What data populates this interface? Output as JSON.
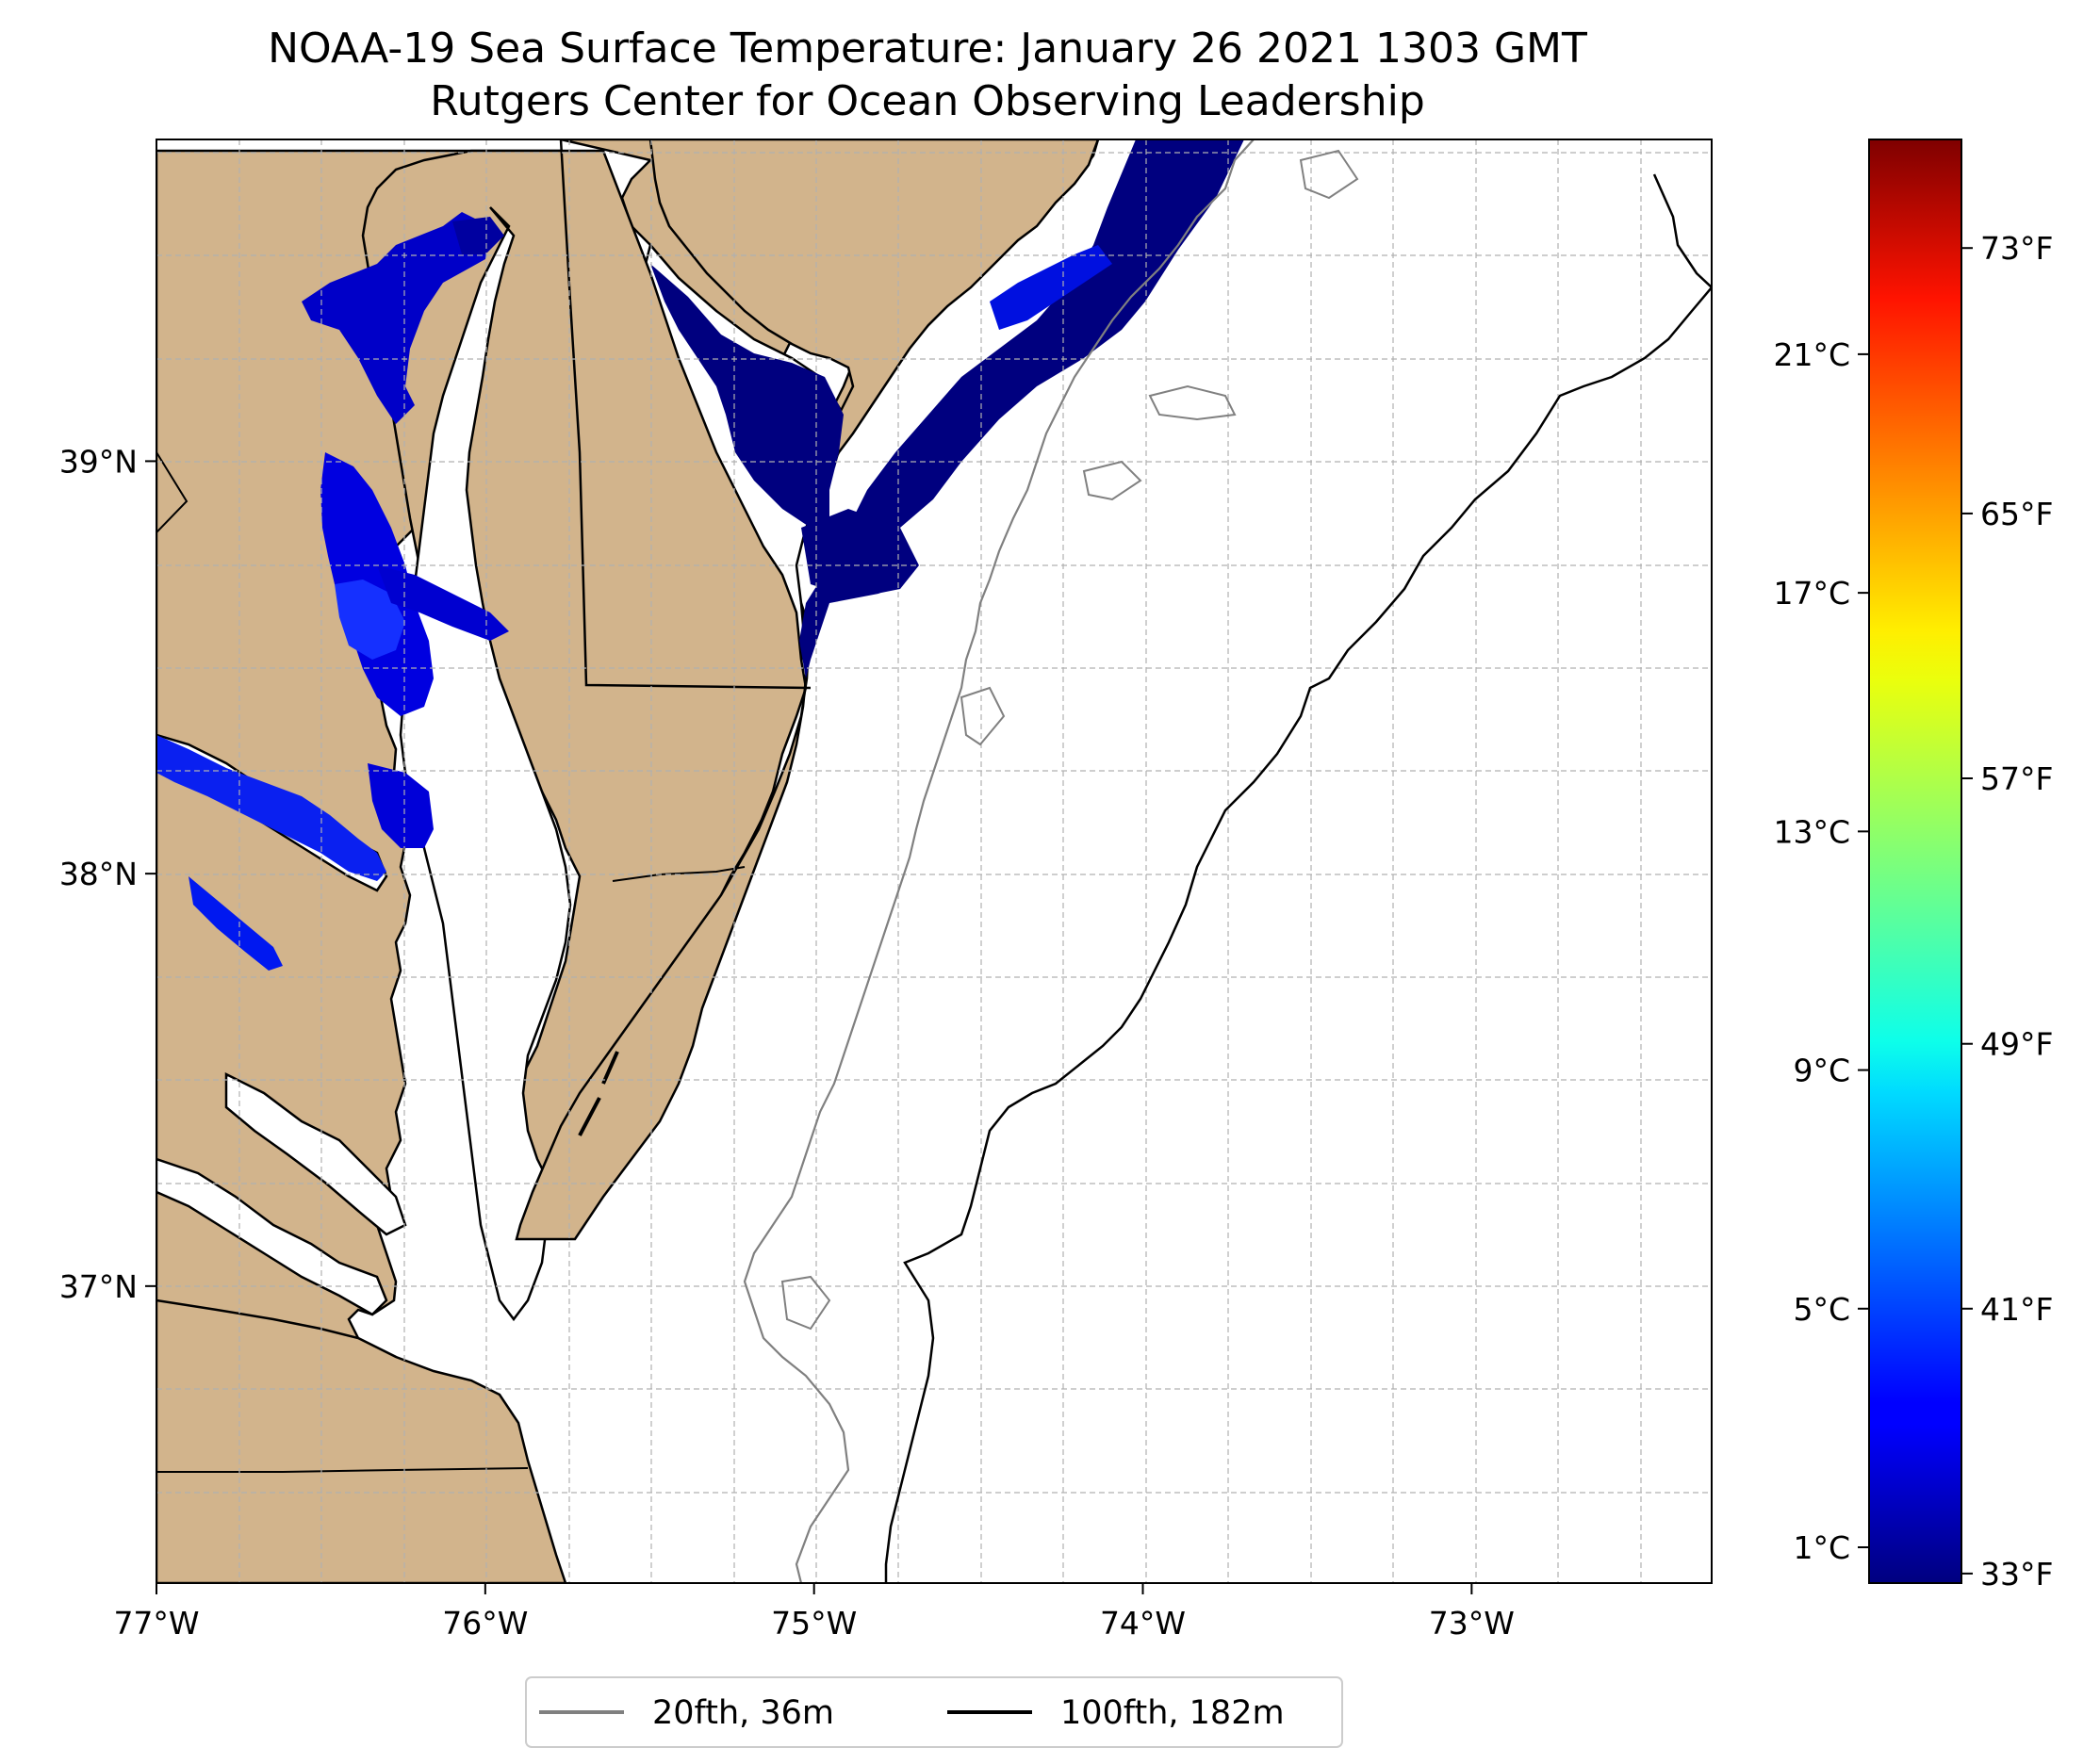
{
  "title": {
    "line1": "NOAA-19 Sea Surface Temperature: January 26 2021 1303 GMT",
    "line2": "Rutgers Center for Ocean Observing Leadership"
  },
  "map": {
    "lon_range": [
      -77.0,
      -72.27
    ],
    "lat_range": [
      36.28,
      39.78
    ],
    "grid": "on",
    "land_color": "#d2b48c",
    "ocean_color": "#ffffff",
    "x_ticks": [
      {
        "lon": -77,
        "label": "77°W"
      },
      {
        "lon": -76,
        "label": "76°W"
      },
      {
        "lon": -75,
        "label": "75°W"
      },
      {
        "lon": -74,
        "label": "74°W"
      },
      {
        "lon": -73,
        "label": "73°W"
      }
    ],
    "y_ticks": [
      {
        "lat": 39,
        "label": "39°N"
      },
      {
        "lat": 38,
        "label": "38°N"
      },
      {
        "lat": 37,
        "label": "37°N"
      }
    ]
  },
  "colorbar": {
    "colormap": "jet",
    "range_c": [
      0.4,
      24.6
    ],
    "celsius_ticks": [
      {
        "value": 1,
        "label": "1°C"
      },
      {
        "value": 5,
        "label": "5°C"
      },
      {
        "value": 9,
        "label": "9°C"
      },
      {
        "value": 13,
        "label": "13°C"
      },
      {
        "value": 17,
        "label": "17°C"
      },
      {
        "value": 21,
        "label": "21°C"
      }
    ],
    "fahrenheit_ticks": [
      {
        "value_c": 0.56,
        "label": "33°F"
      },
      {
        "value_c": 5.0,
        "label": "41°F"
      },
      {
        "value_c": 9.44,
        "label": "49°F"
      },
      {
        "value_c": 13.89,
        "label": "57°F"
      },
      {
        "value_c": 18.33,
        "label": "65°F"
      },
      {
        "value_c": 22.78,
        "label": "73°F"
      }
    ]
  },
  "legend": {
    "items": [
      {
        "label": "20fth, 36m",
        "color": "#808080"
      },
      {
        "label": "100fth, 182m",
        "color": "#000000"
      }
    ]
  }
}
